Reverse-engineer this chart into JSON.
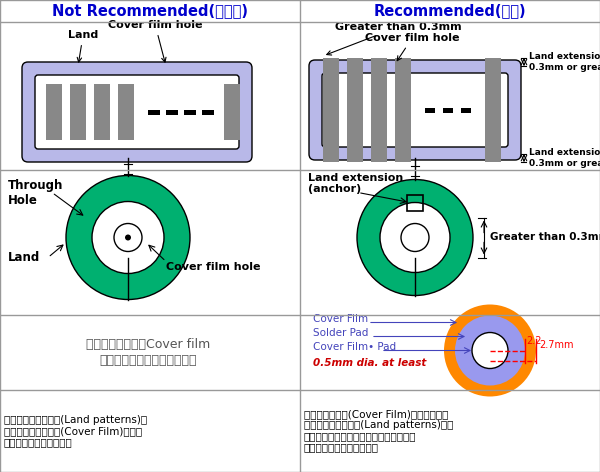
{
  "col1_header": "Not Recommended(不建議)",
  "col2_header": "Recommended(建議)",
  "header_color": "#0000cc",
  "grid_color": "#999999",
  "lavender": "#b8b8e8",
  "green_teal": "#00b070",
  "gray_bar": "#888888",
  "white": "#ffffff",
  "black": "#000000",
  "red_text": "#cc0000",
  "blue_label": "#4444bb",
  "orange_fill": "#ff8800",
  "blue_fill": "#9999ee",
  "bottom_text_left_1": "裸露在外的焊墊線路(Land patterns)沒",
  "bottom_text_left_2": "有部份被絕緣覆蓋層(Cover Film)覆蓋固",
  "bottom_text_left_3": "定時容易因作業而剝落。",
  "bottom_text_right_1": "建議絕緣覆蓋層(Cover Film)要覆蓋住部份",
  "bottom_text_right_2": "裸露在外的焊墊線路(Land patterns)，這",
  "bottom_text_right_3": "樣可以確保焊墊被固定於板材的基板，避",
  "bottom_text_right_4": "免焊墊因焊錫加熱時剝落。",
  "row3_left_1": "通孔的焊墊必須用Cover film",
  "row3_left_2": "覆蓋住，以避免使用時剝落。"
}
